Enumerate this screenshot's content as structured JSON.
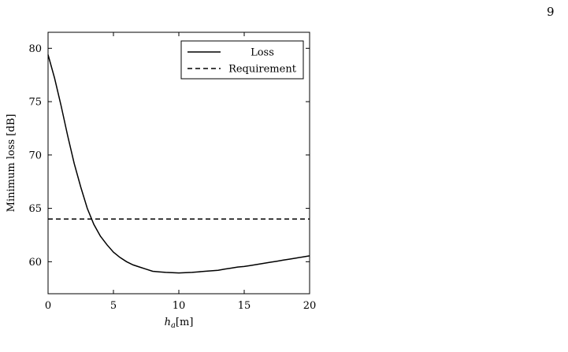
{
  "page": {
    "number": "9"
  },
  "chart_data": {
    "type": "line",
    "title": "",
    "xlabel": "h_a[m]",
    "xlabel_main": "h",
    "xlabel_sub": "a",
    "xlabel_unit": "[m]",
    "ylabel": "Minimum loss [dB]",
    "xlim": [
      0,
      20
    ],
    "ylim": [
      57,
      81.5
    ],
    "xticks": [
      0,
      5,
      10,
      15,
      20
    ],
    "yticks": [
      60,
      65,
      70,
      75,
      80
    ],
    "grid": false,
    "legend_position": "top-right",
    "series": [
      {
        "name": "Loss",
        "style": "solid",
        "x": [
          0,
          0.5,
          1,
          1.5,
          2,
          2.5,
          3,
          3.5,
          4,
          4.5,
          5,
          5.5,
          6,
          6.5,
          7,
          7.5,
          8,
          8.5,
          9,
          9.5,
          10,
          10.5,
          11,
          11.5,
          12,
          12.5,
          13,
          13.5,
          14,
          14.5,
          15,
          15.5,
          16,
          16.5,
          17,
          17.5,
          18,
          18.5,
          19,
          19.5,
          20
        ],
        "y": [
          79.4,
          77.2,
          74.6,
          71.8,
          69.2,
          67.0,
          65.0,
          63.5,
          62.4,
          61.6,
          60.9,
          60.4,
          60.0,
          59.7,
          59.5,
          59.3,
          59.1,
          59.05,
          59.0,
          58.98,
          58.95,
          58.97,
          59.0,
          59.05,
          59.1,
          59.15,
          59.2,
          59.3,
          59.4,
          59.5,
          59.55,
          59.65,
          59.75,
          59.85,
          59.95,
          60.05,
          60.15,
          60.25,
          60.35,
          60.45,
          60.55
        ]
      },
      {
        "name": "Requirement",
        "style": "dashed",
        "x": [
          0,
          20
        ],
        "y": [
          64,
          64
        ]
      }
    ]
  }
}
